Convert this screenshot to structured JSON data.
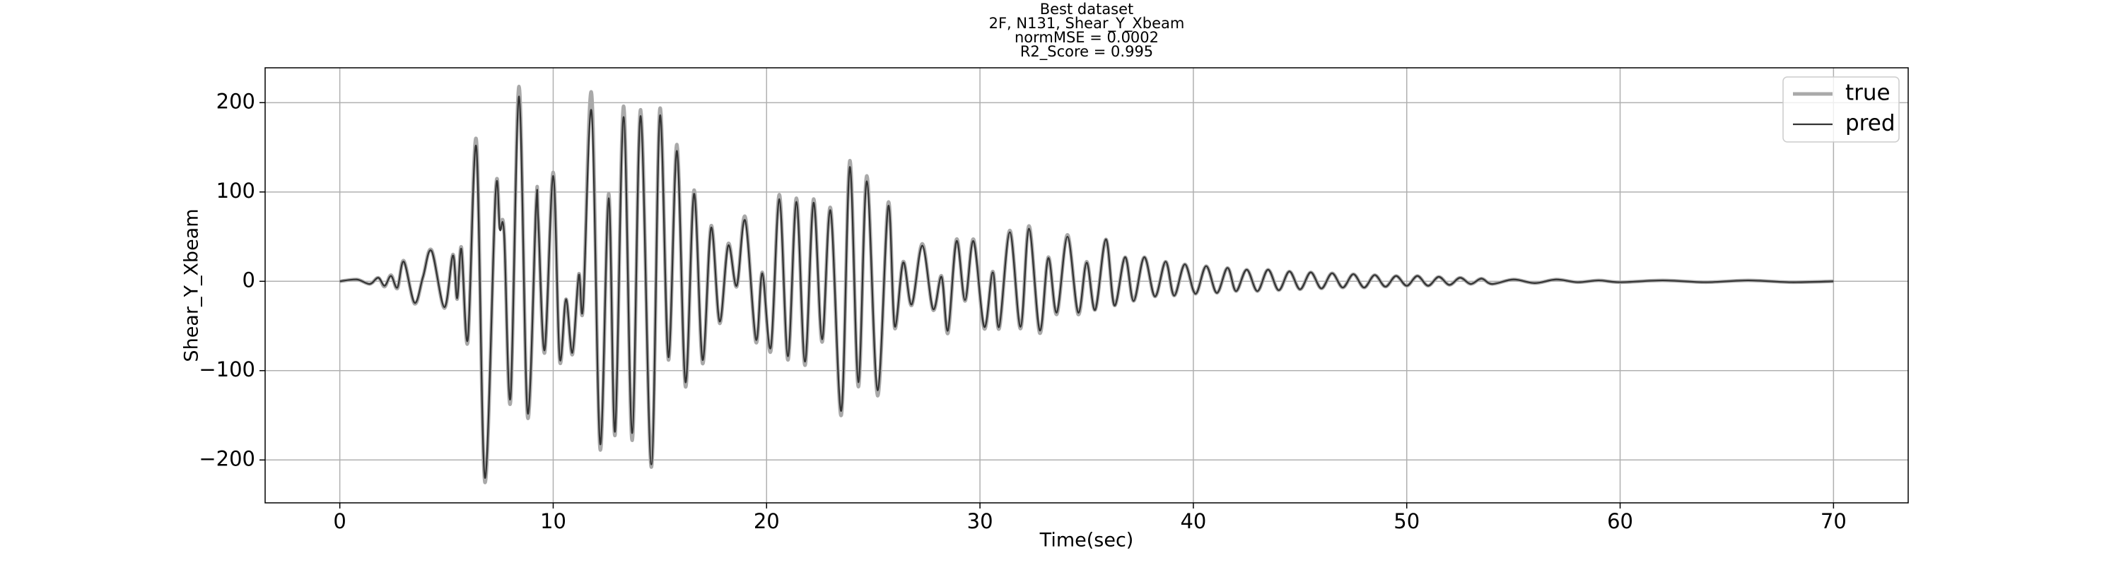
{
  "chart_data": {
    "type": "line",
    "title": [
      "Best dataset",
      "2F, N131, Shear_Y_Xbeam",
      "normMSE = 0.0002",
      "R2_Score = 0.995"
    ],
    "xlabel": "Time(sec)",
    "ylabel": "Shear_Y_Xbeam",
    "xlim": [
      -3.5,
      73.5
    ],
    "ylim": [
      -248,
      239
    ],
    "xticks": [
      0,
      10,
      20,
      30,
      40,
      50,
      60,
      70
    ],
    "yticks": [
      {
        "value": -200,
        "label": "−200"
      },
      {
        "value": -100,
        "label": "−100"
      },
      0,
      100,
      200
    ],
    "grid": true,
    "legend": "upper right",
    "x": [
      0,
      0.8,
      1.4,
      1.8,
      2.1,
      2.4,
      2.7,
      3.0,
      3.5,
      3.9,
      4.3,
      4.9,
      5.3,
      5.5,
      5.7,
      6.0,
      6.4,
      6.8,
      7.3,
      7.5,
      7.7,
      8.0,
      8.4,
      8.8,
      9.2,
      9.3,
      9.6,
      10.0,
      10.3,
      10.6,
      10.9,
      11.2,
      11.4,
      11.8,
      12.2,
      12.6,
      12.9,
      13.3,
      13.7,
      14.1,
      14.6,
      15.0,
      15.4,
      15.8,
      16.2,
      16.6,
      17.0,
      17.4,
      17.8,
      18.2,
      18.6,
      19.0,
      19.5,
      19.8,
      20.2,
      20.6,
      21.0,
      21.4,
      21.8,
      22.2,
      22.6,
      23.0,
      23.5,
      23.9,
      24.3,
      24.7,
      25.2,
      25.7,
      26.0,
      26.4,
      26.8,
      27.3,
      27.8,
      28.2,
      28.5,
      28.9,
      29.3,
      29.7,
      30.2,
      30.6,
      30.9,
      31.4,
      31.9,
      32.3,
      32.8,
      33.2,
      33.6,
      34.1,
      34.6,
      35.0,
      35.4,
      35.9,
      36.3,
      36.8,
      37.2,
      37.7,
      38.2,
      38.7,
      39.1,
      39.6,
      40.1,
      40.6,
      41.1,
      41.6,
      42.0,
      42.5,
      43.0,
      43.5,
      44.0,
      44.5,
      45.0,
      45.5,
      46.0,
      46.5,
      47.0,
      47.5,
      48.0,
      48.5,
      49.0,
      49.5,
      50.0,
      50.5,
      51.0,
      51.5,
      52.0,
      52.5,
      53.0,
      53.5,
      54,
      55,
      56,
      57,
      58,
      59,
      60,
      62,
      64,
      66,
      68,
      70
    ],
    "series": [
      {
        "name": "true",
        "color": "#a9a9a9",
        "values": [
          0,
          2,
          -3,
          4,
          -6,
          7,
          -8,
          23,
          -25,
          5,
          35,
          -30,
          30,
          -20,
          38,
          -68,
          158,
          -225,
          100,
          60,
          55,
          -135,
          218,
          -152,
          88,
          70,
          -80,
          122,
          -88,
          -20,
          -82,
          8,
          -30,
          210,
          -188,
          98,
          -172,
          196,
          -178,
          192,
          -208,
          193,
          -88,
          153,
          -118,
          102,
          -92,
          62,
          -47,
          42,
          -6,
          72,
          -68,
          10,
          -78,
          97,
          -88,
          93,
          -94,
          92,
          -68,
          82,
          -150,
          135,
          -118,
          118,
          -128,
          88,
          -52,
          22,
          -27,
          42,
          -32,
          6,
          -58,
          47,
          -22,
          47,
          -53,
          11,
          -53,
          57,
          -53,
          62,
          -58,
          27,
          -37,
          52,
          -37,
          22,
          -32,
          47,
          -27,
          27,
          -22,
          27,
          -17,
          22,
          -16,
          19,
          -14,
          17,
          -13,
          15,
          -11,
          13,
          -11,
          13,
          -10,
          11,
          -9,
          10,
          -8,
          9,
          -7,
          8,
          -7,
          7,
          -6,
          6,
          -5,
          6,
          -5,
          5,
          -4,
          4,
          -3,
          3,
          -3,
          2,
          -2,
          2,
          -1,
          1,
          -1,
          1,
          -1,
          1,
          -1,
          0
        ]
      },
      {
        "name": "pred",
        "color": "#333333",
        "values": [
          0,
          2,
          -3,
          4,
          -5,
          6,
          -7,
          22,
          -24,
          5,
          34,
          -29,
          29,
          -19,
          36,
          -65,
          150,
          -220,
          98,
          58,
          53,
          -130,
          207,
          -147,
          85,
          68,
          -77,
          118,
          -85,
          -20,
          -80,
          7,
          -29,
          190,
          -182,
          93,
          -168,
          184,
          -170,
          185,
          -205,
          185,
          -85,
          146,
          -113,
          98,
          -88,
          60,
          -45,
          40,
          -5,
          68,
          -65,
          9,
          -74,
          92,
          -84,
          89,
          -90,
          88,
          -65,
          79,
          -145,
          128,
          -113,
          112,
          -122,
          84,
          -50,
          21,
          -26,
          40,
          -31,
          5,
          -55,
          45,
          -21,
          45,
          -51,
          10,
          -51,
          55,
          -51,
          59,
          -55,
          26,
          -35,
          50,
          -35,
          21,
          -32,
          47,
          -27,
          27,
          -22,
          27,
          -17,
          22,
          -16,
          19,
          -14,
          17,
          -13,
          15,
          -11,
          13,
          -11,
          13,
          -10,
          11,
          -9,
          10,
          -8,
          9,
          -7,
          8,
          -7,
          7,
          -6,
          6,
          -5,
          6,
          -5,
          5,
          -4,
          4,
          -3,
          3,
          -3,
          2,
          -2,
          2,
          -1,
          1,
          -1,
          1,
          -1,
          1,
          -1,
          0
        ]
      }
    ]
  }
}
